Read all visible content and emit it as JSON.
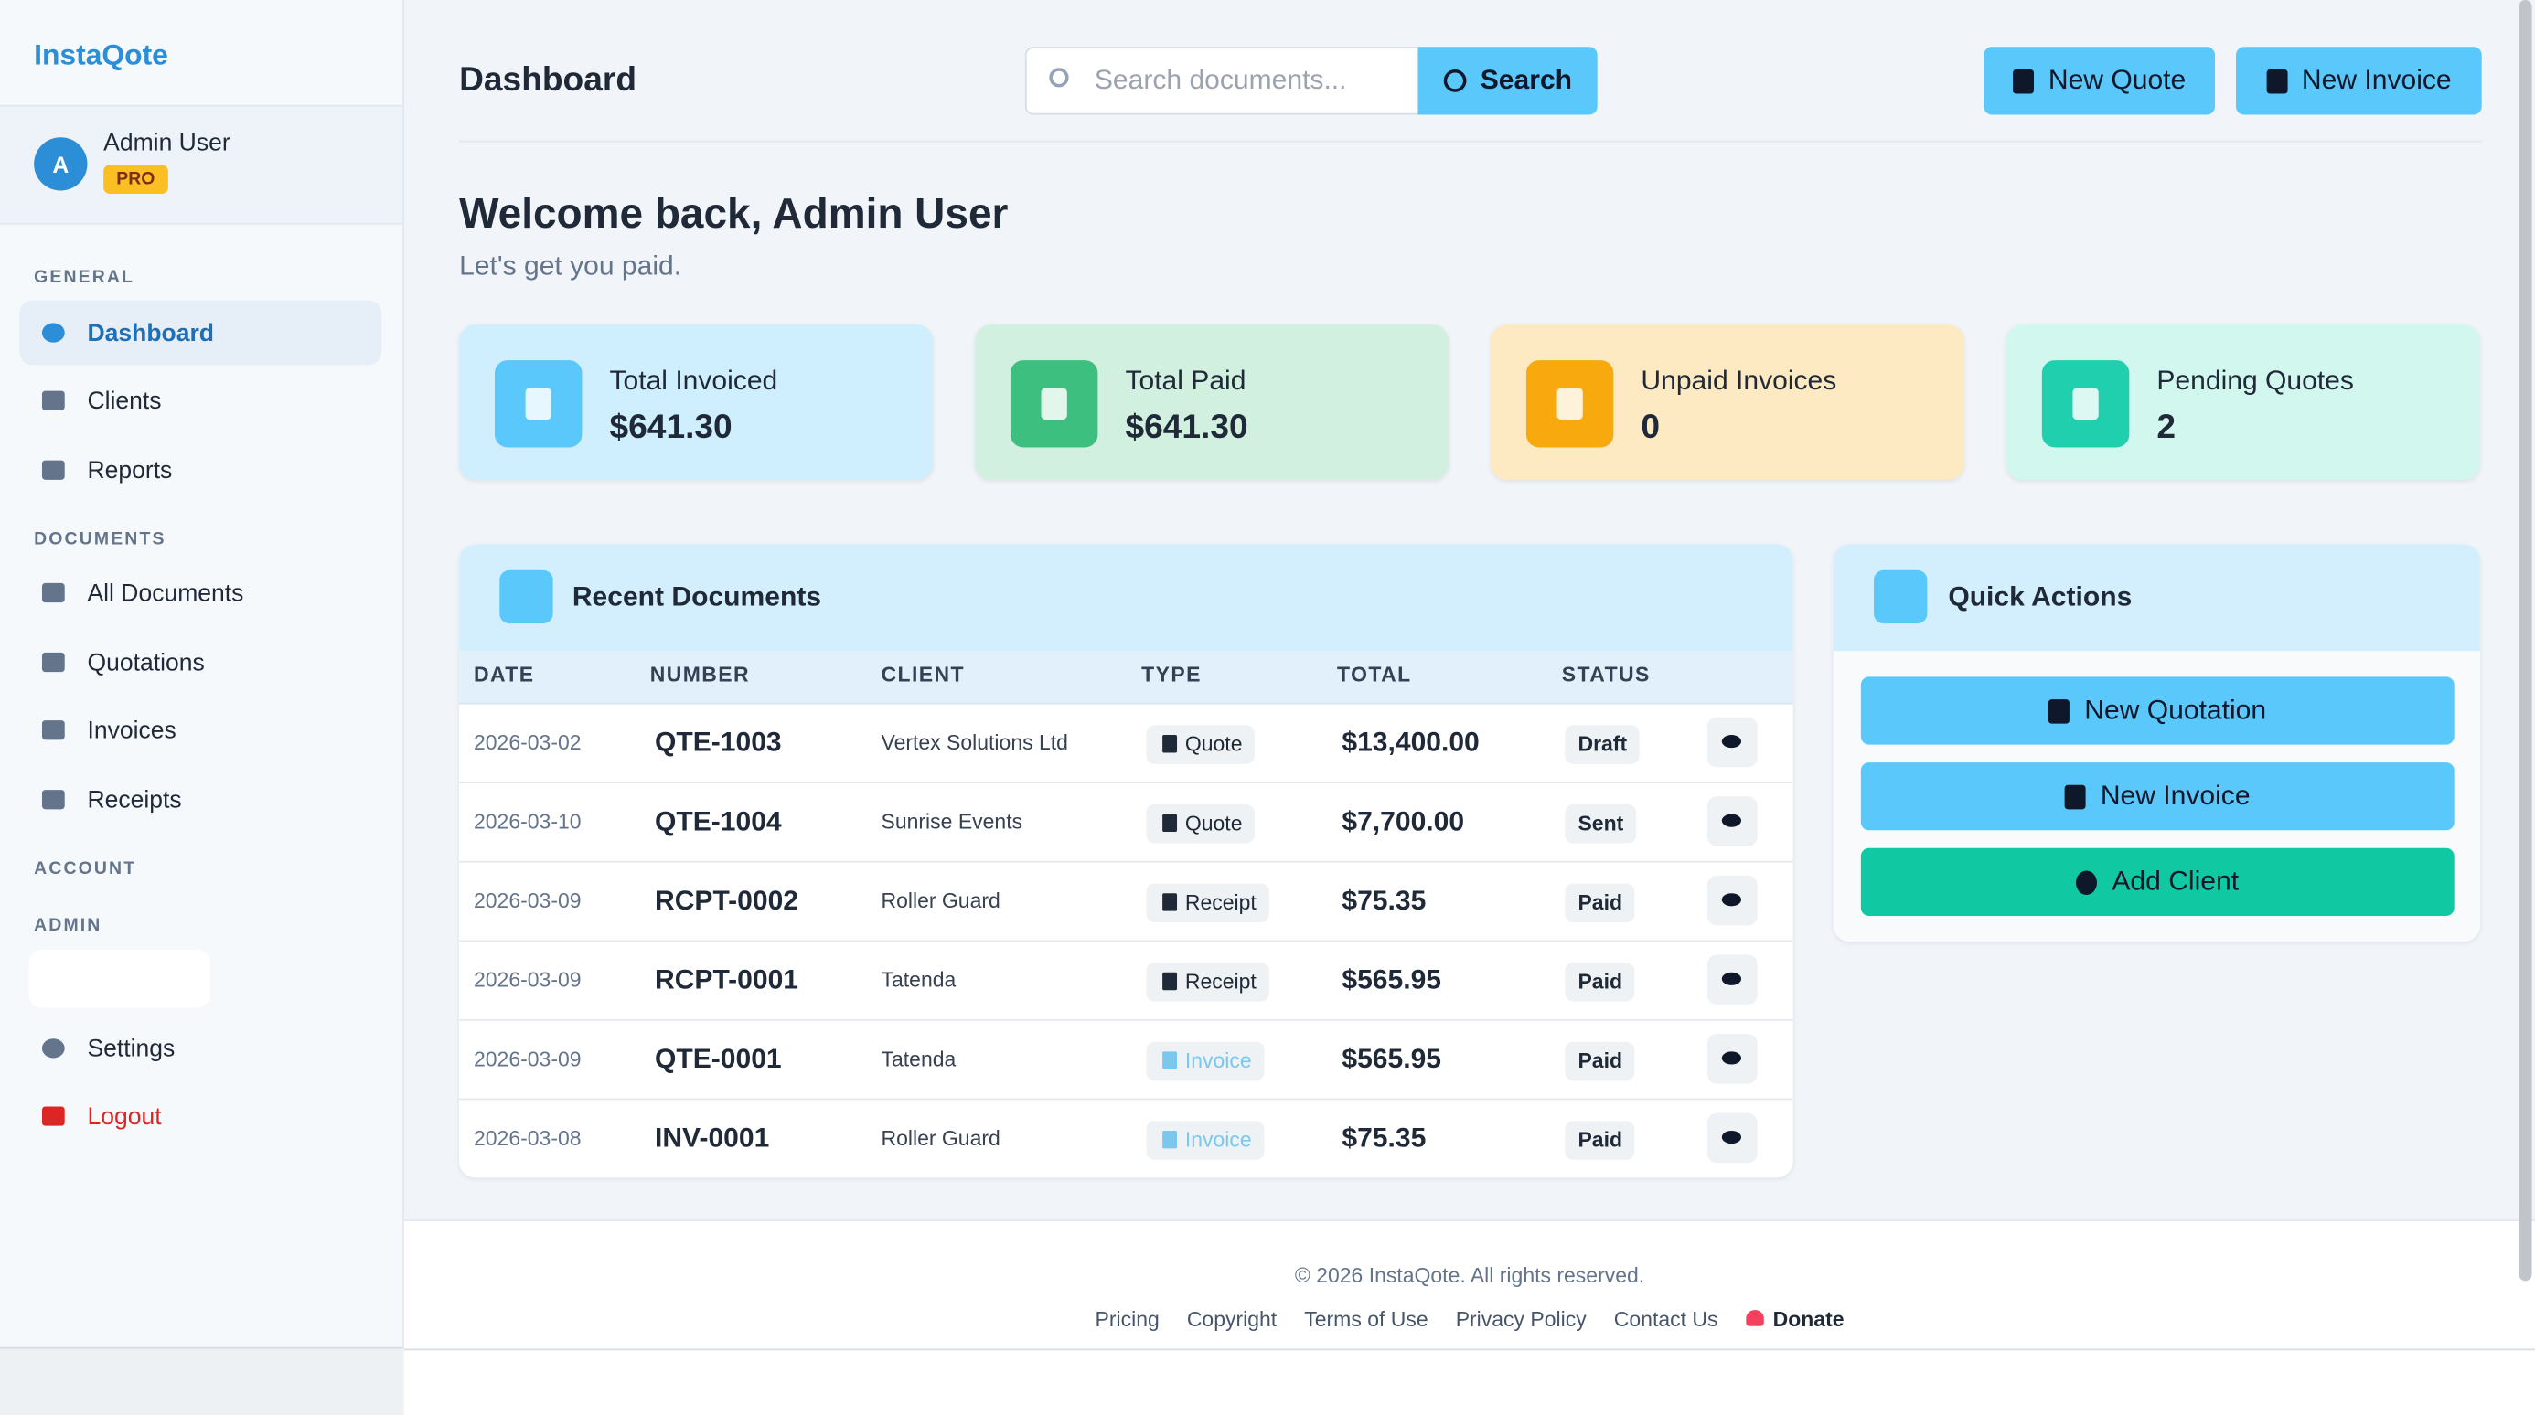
{
  "sidebar": {
    "brand": "InstaQote",
    "user": {
      "avatar": "A",
      "name": "Admin User",
      "badge": "PRO"
    },
    "general": {
      "heading": "GENERAL",
      "items": [
        "Dashboard",
        "Clients",
        "Reports"
      ]
    },
    "documents": {
      "heading": "DOCUMENTS",
      "items": [
        "All Documents",
        "Quotations",
        "Invoices",
        "Receipts"
      ]
    },
    "account_heading": "ACCOUNT",
    "admin": {
      "heading": "ADMIN",
      "items": [
        "Settings",
        "Logout"
      ]
    }
  },
  "header": {
    "title": "Dashboard",
    "search_placeholder": "Search documents...",
    "search_button": "Search",
    "buttons": [
      "New Quote",
      "New Invoice"
    ]
  },
  "welcome": {
    "title": "Welcome back, Admin User",
    "subtitle": "Let's get you paid."
  },
  "stats": [
    {
      "label": "Total Invoiced",
      "value": "$641.30"
    },
    {
      "label": "Total Paid",
      "value": "$641.30"
    },
    {
      "label": "Unpaid Invoices",
      "value": "0"
    },
    {
      "label": "Pending Quotes",
      "value": "2"
    }
  ],
  "recent_documents": {
    "title": "Recent Documents",
    "columns": [
      "DATE",
      "NUMBER",
      "CLIENT",
      "TYPE",
      "TOTAL",
      "STATUS"
    ],
    "rows": [
      [
        "2026-03-02",
        "QTE-1003",
        "Vertex Solutions Ltd",
        "Quote",
        "$13,400.00",
        "Draft"
      ],
      [
        "2026-03-10",
        "QTE-1004",
        "Sunrise Events",
        "Quote",
        "$7,700.00",
        "Sent"
      ],
      [
        "2026-03-09",
        "RCPT-0002",
        "Roller Guard",
        "Receipt",
        "$75.35",
        "Paid"
      ],
      [
        "2026-03-09",
        "RCPT-0001",
        "Tatenda",
        "Receipt",
        "$565.95",
        "Paid"
      ],
      [
        "2026-03-09",
        "QTE-0001",
        "Tatenda",
        "Invoice",
        "$565.95",
        "Paid"
      ],
      [
        "2026-03-08",
        "INV-0001",
        "Roller Guard",
        "Invoice",
        "$75.35",
        "Paid"
      ]
    ]
  },
  "quick_actions": {
    "title": "Quick Actions",
    "buttons": [
      "New Quotation",
      "New Invoice",
      "Add Client"
    ]
  },
  "footer": {
    "copyright": "© 2026 InstaQote. All rights reserved.",
    "links": [
      "Pricing",
      "Copyright",
      "Terms of Use",
      "Privacy Policy",
      "Contact Us",
      "Donate"
    ]
  }
}
